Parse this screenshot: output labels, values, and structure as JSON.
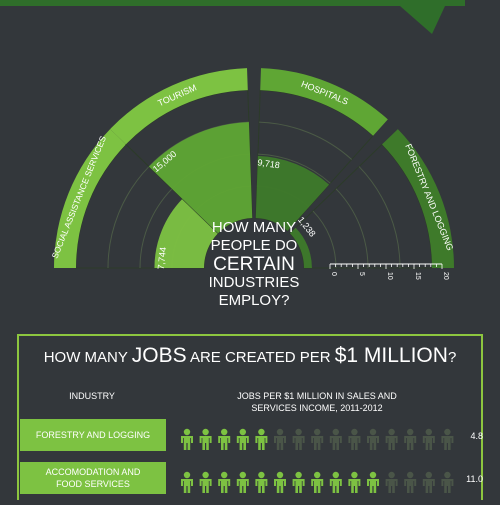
{
  "colors": {
    "background": "#33373b",
    "green_light": "#7dc242",
    "green_mid": "#5fa634",
    "green_dark": "#3e7a2a",
    "green_faint": "#2c3b29",
    "figure_off": "#4a5548",
    "frame": "#8dc63f"
  },
  "semicircle": {
    "question_lines": [
      "HOW MANY",
      "PEOPLE DO",
      "CERTAIN",
      "INDUSTRIES",
      "EMPLOY?"
    ],
    "scale_ticks": [
      "0",
      "5",
      "10",
      "15",
      "20"
    ]
  },
  "chart_data": [
    {
      "type": "radial_bar",
      "title": "HOW MANY PEOPLE DO CERTAIN INDUSTRIES EMPLOY?",
      "categories": [
        "SOCIAL ASSISTANCE SERVICES",
        "TOURISM",
        "HOSPITALS",
        "FORESTRY AND LOGGING"
      ],
      "values": [
        7744,
        15000,
        9718,
        1238
      ],
      "value_labels": [
        "7,744",
        "15,000",
        "9,718",
        "1,238"
      ],
      "scale_ticks": [
        "0",
        "5",
        "10",
        "15",
        "20"
      ],
      "scale_max": 20000
    },
    {
      "type": "pictogram",
      "title_parts": [
        "HOW MANY ",
        "JOBS",
        " ARE CREATED PER ",
        "$1 MILLION",
        "?"
      ],
      "column_headers": [
        "INDUSTRY",
        "JOBS PER $1 MILLION IN SALES AND SERVICES INCOME, 2011-2012"
      ],
      "rows": [
        {
          "label_lines": [
            "FORESTRY AND LOGGING"
          ],
          "value": 4.8,
          "value_label": "4.8"
        },
        {
          "label_lines": [
            "ACCOMODATION AND",
            "FOOD SERVICES"
          ],
          "value": 11.0,
          "value_label": "11.0"
        }
      ],
      "icon": "person-icon",
      "icons_per_row": 15
    }
  ]
}
